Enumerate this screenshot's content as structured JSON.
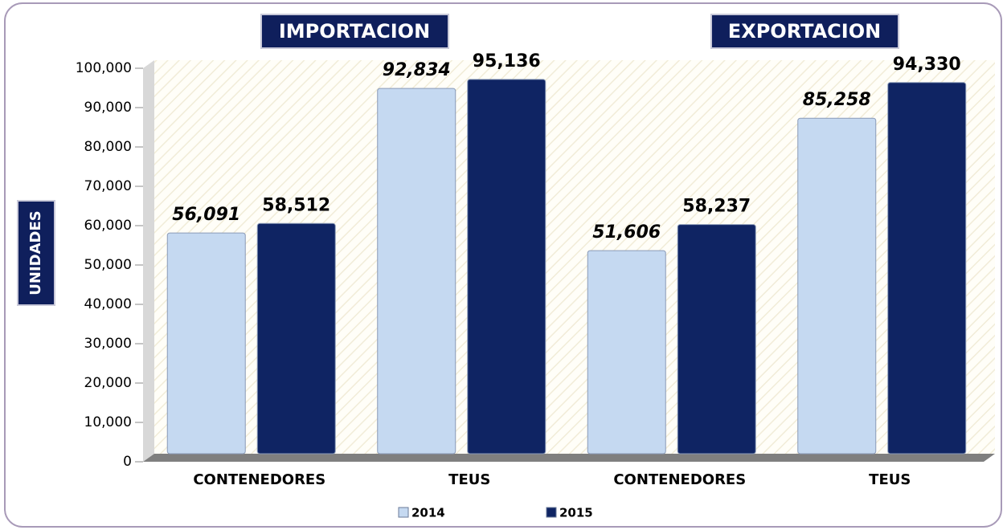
{
  "chart_data": {
    "type": "bar",
    "annotations": [
      "IMPORTACION",
      "EXPORTACION"
    ],
    "y_label": "UNIDADES",
    "categories": [
      "CONTENEDORES",
      "TEUS",
      "CONTENEDORES",
      "TEUS"
    ],
    "series": [
      {
        "name": "2014",
        "color": "#c5d9f1",
        "values": [
          56091,
          92834,
          51606,
          85258
        ],
        "value_labels": [
          "56,091",
          "92,834",
          "51,606",
          "85,258"
        ]
      },
      {
        "name": "2015",
        "color": "#0f2463",
        "values": [
          58512,
          95136,
          58237,
          94330
        ],
        "value_labels": [
          "58,512",
          "95,136",
          "58,237",
          "94,330"
        ]
      }
    ],
    "ylim": [
      0,
      100000
    ],
    "yticks": [
      0,
      {
        "value": 10000,
        "label": "10,000"
      },
      {
        "value": 20000,
        "label": "20,000"
      },
      {
        "value": 30000,
        "label": "30,000"
      },
      {
        "value": 40000,
        "label": "40,000"
      },
      {
        "value": 50000,
        "label": "50,000"
      },
      {
        "value": 60000,
        "label": "60,000"
      },
      {
        "value": 70000,
        "label": "70,000"
      },
      {
        "value": 80000,
        "label": "80,000"
      },
      {
        "value": 90000,
        "label": "90,000"
      },
      {
        "value": 100000,
        "label": "100,000"
      }
    ]
  }
}
